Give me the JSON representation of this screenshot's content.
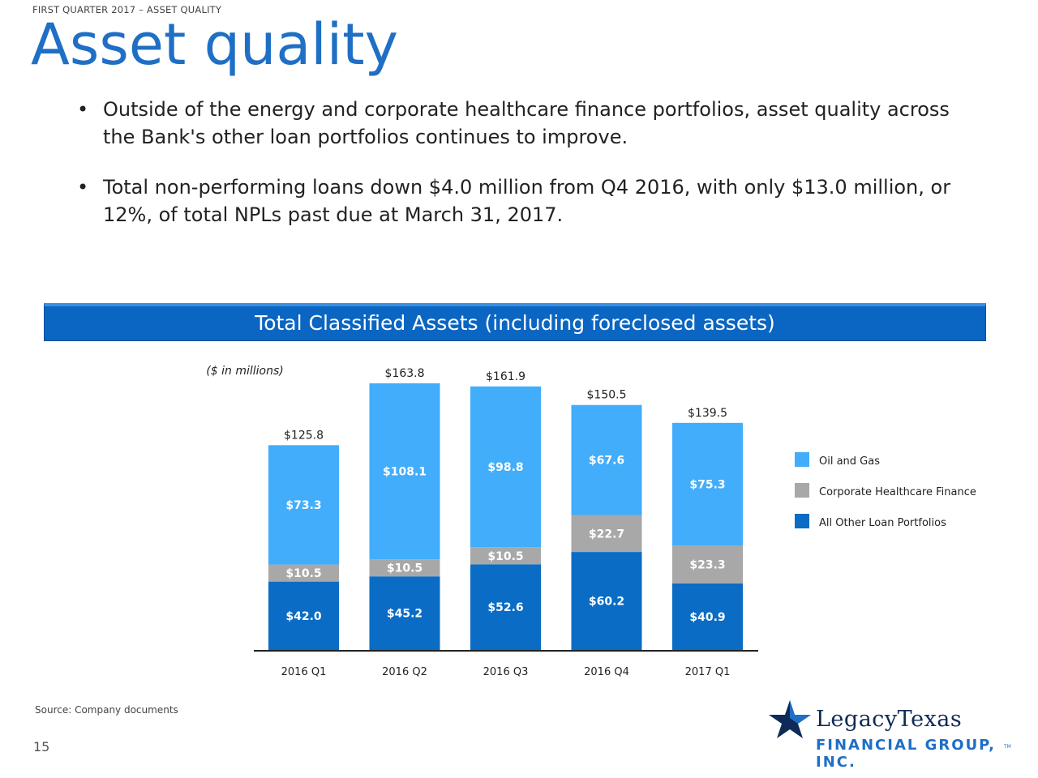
{
  "header": {
    "eyebrow": "FIRST QUARTER 2017 – ASSET QUALITY",
    "title": "Asset quality"
  },
  "bullets": [
    "Outside of the energy and corporate healthcare finance portfolios, asset quality across the Bank's other loan portfolios continues to improve.",
    "Total non-performing loans down $4.0 million from Q4 2016, with only $13.0 million, or 12%, of total NPLs past due at March 31, 2017."
  ],
  "banner": "Total Classified Assets (including foreclosed assets)",
  "chart_data": {
    "type": "bar",
    "stacked": true,
    "units_note": "($ in millions)",
    "categories": [
      "2016 Q1",
      "2016 Q2",
      "2016 Q3",
      "2016 Q4",
      "2017 Q1"
    ],
    "series": [
      {
        "name": "All Other Loan Portfolios",
        "color": "#0a6cc5",
        "values": [
          42.0,
          45.2,
          52.6,
          60.2,
          40.9
        ],
        "labels": [
          "$42.0",
          "$45.2",
          "$52.6",
          "$60.2",
          "$40.9"
        ]
      },
      {
        "name": "Corporate Healthcare Finance",
        "color": "#a8a8a8",
        "values": [
          10.5,
          10.5,
          10.5,
          22.7,
          23.3
        ],
        "labels": [
          "$10.5",
          "$10.5",
          "$10.5",
          "$22.7",
          "$23.3"
        ]
      },
      {
        "name": "Oil and Gas",
        "color": "#42adfb",
        "values": [
          73.3,
          108.1,
          98.8,
          67.6,
          75.3
        ],
        "labels": [
          "$73.3",
          "$108.1",
          "$98.8",
          "$67.6",
          "$75.3"
        ]
      }
    ],
    "totals": [
      "$125.8",
      "$163.8",
      "$161.9",
      "$150.5",
      "$139.5"
    ],
    "total_values": [
      125.8,
      163.8,
      161.9,
      150.5,
      139.5
    ],
    "legend_order": [
      "Oil and Gas",
      "Corporate Healthcare Finance",
      "All Other Loan Portfolios"
    ],
    "legend_position": "right",
    "ylim": [
      0,
      163.8
    ],
    "grid": false
  },
  "footer": {
    "source": "Source: Company documents",
    "page": "15"
  },
  "logo": {
    "name": "LegacyTexas",
    "sub": "FINANCIAL GROUP, INC.",
    "tm": "TM"
  }
}
